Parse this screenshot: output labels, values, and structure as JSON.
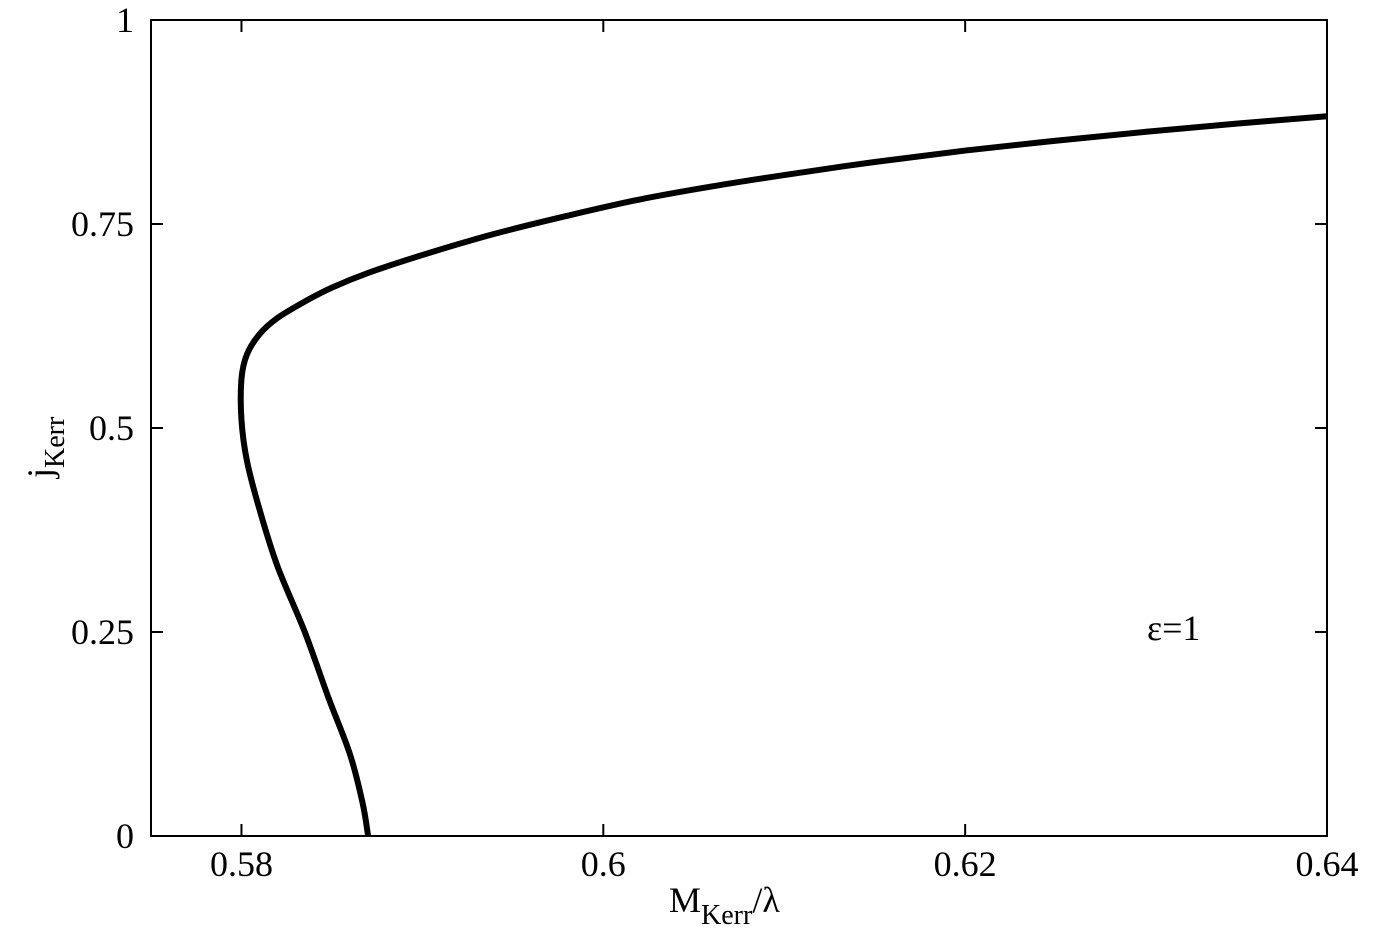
{
  "chart_data": {
    "type": "line",
    "title": "",
    "xlabel": {
      "main": "M",
      "sub": "Kerr",
      "suffix": "/λ"
    },
    "ylabel": {
      "main": "j",
      "sub": "Kerr"
    },
    "xlim": [
      0.575,
      0.64
    ],
    "ylim": [
      0,
      1
    ],
    "xticks": [
      0.58,
      0.6,
      0.62,
      0.64
    ],
    "xtick_labels": [
      "0.58",
      "0.6",
      "0.62",
      "0.64"
    ],
    "yticks": [
      0,
      0.25,
      0.5,
      0.75,
      1
    ],
    "ytick_labels": [
      "0",
      "0.25",
      "0.5",
      "0.75",
      "1"
    ],
    "grid": false,
    "annotations": [
      {
        "text": "ε=1",
        "x": 0.631,
        "y": 0.255
      }
    ],
    "series": [
      {
        "color": "#000000",
        "x": [
          0.587,
          0.5867,
          0.586,
          0.5848,
          0.5835,
          0.582,
          0.581,
          0.5803,
          0.58,
          0.58,
          0.5803,
          0.581,
          0.582,
          0.5835,
          0.585,
          0.587,
          0.59,
          0.594,
          0.598,
          0.602,
          0.606,
          0.61,
          0.615,
          0.62,
          0.625,
          0.63,
          0.635,
          0.64
        ],
        "y": [
          0.0,
          0.04,
          0.1,
          0.17,
          0.25,
          0.33,
          0.4,
          0.46,
          0.51,
          0.56,
          0.59,
          0.615,
          0.635,
          0.655,
          0.672,
          0.69,
          0.712,
          0.738,
          0.76,
          0.78,
          0.796,
          0.81,
          0.826,
          0.84,
          0.852,
          0.863,
          0.873,
          0.882
        ]
      }
    ]
  }
}
